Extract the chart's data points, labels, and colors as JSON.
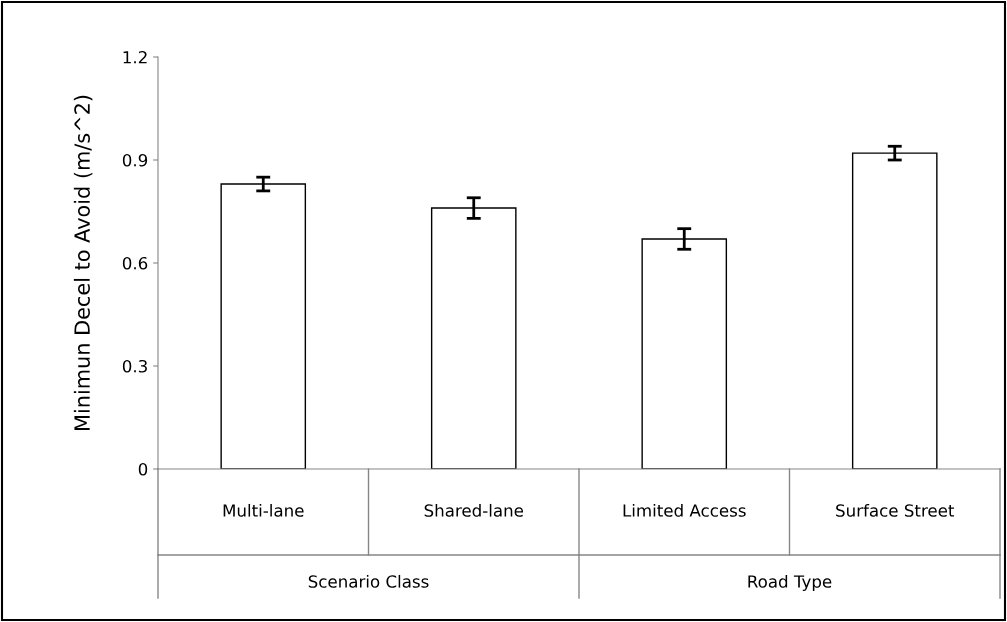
{
  "chart_data": {
    "type": "bar",
    "ylabel": "Minimun Decel to Avoid (m/s^2)",
    "categories": [
      "Multi-lane",
      "Shared-lane",
      "Limited Access",
      "Surface Street"
    ],
    "values": [
      0.83,
      0.76,
      0.67,
      0.92
    ],
    "errors": [
      0.02,
      0.03,
      0.03,
      0.02
    ],
    "color": "#ffffff",
    "annotations": [
      "Scenario Class",
      "Road Type"
    ],
    "ylim": [
      0,
      1.2
    ],
    "yticks": [
      0,
      0.3,
      0.6,
      0.9,
      1.2
    ],
    "grid": false,
    "legend": false
  }
}
